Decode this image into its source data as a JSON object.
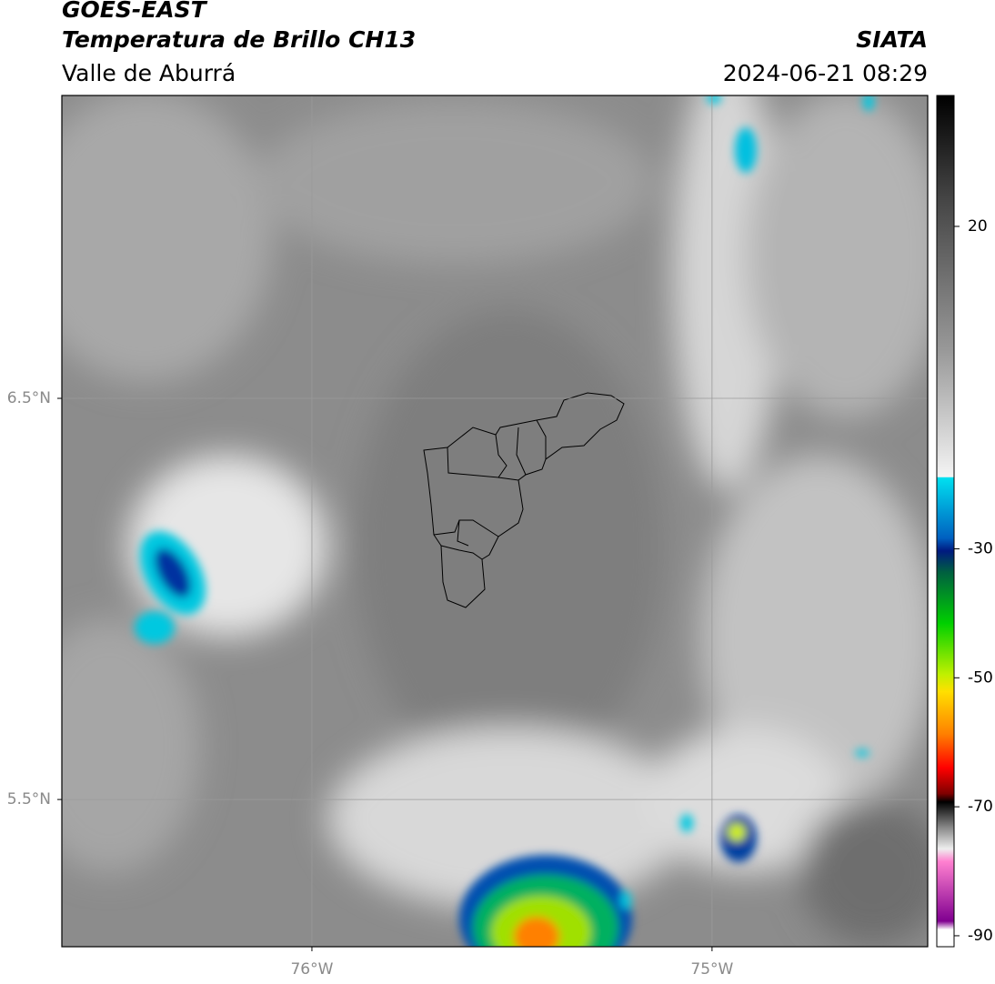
{
  "header": {
    "title": "GOES-EAST",
    "subtitle": "Temperatura de Brillo CH13",
    "region": "Valle de Aburrá",
    "source": "SIATA",
    "timestamp": "2024-06-21 08:29"
  },
  "map": {
    "xlim": [
      -76.625,
      -74.461
    ],
    "ylim": [
      5.133,
      7.255
    ],
    "xticks": [
      {
        "value": -76,
        "label": "76°W"
      },
      {
        "value": -75,
        "label": "75°W"
      }
    ],
    "yticks": [
      {
        "value": 6.5,
        "label": "6.5°N"
      },
      {
        "value": 5.5,
        "label": "5.5°N"
      }
    ],
    "grid": true
  },
  "colorbar": {
    "lim": [
      -91.7,
      40.3
    ],
    "ticks": [
      20,
      -30,
      -50,
      -70,
      -90
    ]
  }
}
